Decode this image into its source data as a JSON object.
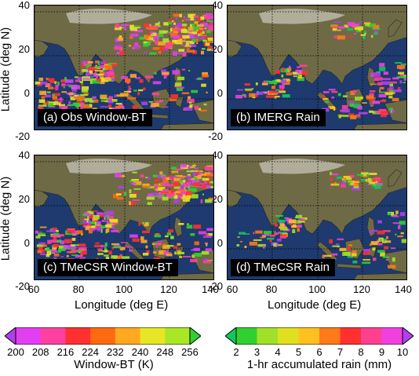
{
  "axes": {
    "ylabel": "Latitude (deg N)",
    "xlabel": "Longitude (deg E)",
    "lat_ticks": [
      "40",
      "20",
      "0",
      "-20"
    ],
    "lon_ticks": [
      "60",
      "80",
      "100",
      "120",
      "140"
    ]
  },
  "panels": [
    {
      "label": "(a) Obs Window-BT",
      "kind": "bt"
    },
    {
      "label": "(b) IMERG Rain",
      "kind": "rain"
    },
    {
      "label": "(c) TMeCSR Window-BT",
      "kind": "bt"
    },
    {
      "label": "(d) TMeCSR Rain",
      "kind": "rain"
    }
  ],
  "colorbars": {
    "bt": {
      "title": "Window-BT (K)",
      "ticks": [
        "200",
        "208",
        "216",
        "224",
        "232",
        "240",
        "248",
        "256"
      ],
      "colors": [
        "#b040e8",
        "#e040f0",
        "#ff40a0",
        "#ff3030",
        "#ff6a10",
        "#ffa820",
        "#e6e626",
        "#a8e626",
        "#30d030"
      ]
    },
    "rain": {
      "title": "1-hr accumulated rain (mm)",
      "ticks": [
        "2",
        "3",
        "4",
        "5",
        "6",
        "7",
        "8",
        "9",
        "10"
      ],
      "colors": [
        "#10c860",
        "#30d030",
        "#a0e028",
        "#e0e020",
        "#ffc020",
        "#ff7a18",
        "#ff3030",
        "#ff4090",
        "#f040e0",
        "#b040f0"
      ]
    }
  },
  "map_colors": {
    "ocean": "#1e3a6e",
    "land": "#6e6a46",
    "himalaya": "#c8c4b8"
  }
}
